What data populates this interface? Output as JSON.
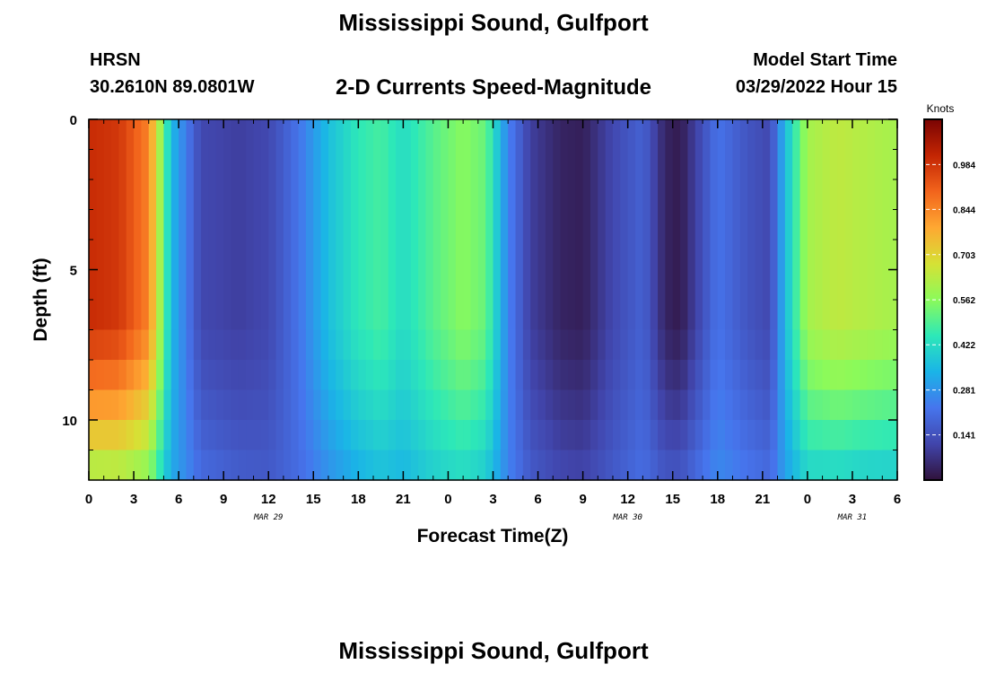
{
  "header": {
    "title": "Mississippi Sound, Gulfport",
    "station_id": "HRSN",
    "coordinates": "30.2610N  89.0801W",
    "subtitle": "2-D Currents Speed-Magnitude",
    "model_start_label": "Model Start Time",
    "model_start_value": "03/29/2022 Hour 15"
  },
  "footer": {
    "title": "Mississippi Sound, Gulfport"
  },
  "chart_data": {
    "type": "heatmap",
    "xlabel": "Forecast Time(Z)",
    "ylabel": "Depth (ft)",
    "x_range_hours": [
      0,
      54
    ],
    "x_ticks": [
      "0",
      "3",
      "6",
      "9",
      "12",
      "15",
      "18",
      "21",
      "0",
      "3",
      "6",
      "9",
      "12",
      "15",
      "18",
      "21",
      "0",
      "3",
      "6"
    ],
    "x_tick_hours": [
      0,
      3,
      6,
      9,
      12,
      15,
      18,
      21,
      24,
      27,
      30,
      33,
      36,
      39,
      42,
      45,
      48,
      51,
      54
    ],
    "date_labels": [
      {
        "label": "MAR 29",
        "hour": 12
      },
      {
        "label": "MAR 30",
        "hour": 36
      },
      {
        "label": "MAR 31",
        "hour": 51
      }
    ],
    "y_ticks": [
      "0",
      "5",
      "10"
    ],
    "y_tick_values": [
      0,
      5,
      10
    ],
    "ylim": [
      0,
      12
    ],
    "colorbar": {
      "label": "Knots",
      "range": [
        0,
        1.125
      ],
      "ticks": [
        "0.984",
        "0.844",
        "0.703",
        "0.562",
        "0.422",
        "0.281",
        "0.141"
      ],
      "tick_values": [
        0.984,
        0.844,
        0.703,
        0.562,
        0.422,
        0.281,
        0.141
      ]
    },
    "surface_speed_knots": [
      {
        "hour": 0,
        "value": 1.0
      },
      {
        "hour": 2,
        "value": 0.98
      },
      {
        "hour": 4,
        "value": 0.85
      },
      {
        "hour": 5.5,
        "value": 0.35
      },
      {
        "hour": 7.5,
        "value": 0.12
      },
      {
        "hour": 10,
        "value": 0.1
      },
      {
        "hour": 12,
        "value": 0.12
      },
      {
        "hour": 14,
        "value": 0.22
      },
      {
        "hour": 16,
        "value": 0.36
      },
      {
        "hour": 18,
        "value": 0.45
      },
      {
        "hour": 19.5,
        "value": 0.48
      },
      {
        "hour": 21,
        "value": 0.42
      },
      {
        "hour": 23,
        "value": 0.5
      },
      {
        "hour": 25,
        "value": 0.56
      },
      {
        "hour": 26.5,
        "value": 0.52
      },
      {
        "hour": 28,
        "value": 0.25
      },
      {
        "hour": 29.5,
        "value": 0.1
      },
      {
        "hour": 31.5,
        "value": 0.04
      },
      {
        "hour": 33,
        "value": 0.03
      },
      {
        "hour": 35,
        "value": 0.12
      },
      {
        "hour": 37,
        "value": 0.18
      },
      {
        "hour": 38.5,
        "value": 0.04
      },
      {
        "hour": 39.5,
        "value": 0.02
      },
      {
        "hour": 40.5,
        "value": 0.1
      },
      {
        "hour": 42,
        "value": 0.22
      },
      {
        "hour": 44,
        "value": 0.15
      },
      {
        "hour": 45.5,
        "value": 0.12
      },
      {
        "hour": 46.5,
        "value": 0.35
      },
      {
        "hour": 48,
        "value": 0.6
      },
      {
        "hour": 50,
        "value": 0.64
      },
      {
        "hour": 52,
        "value": 0.62
      },
      {
        "hour": 54,
        "value": 0.6
      }
    ]
  }
}
